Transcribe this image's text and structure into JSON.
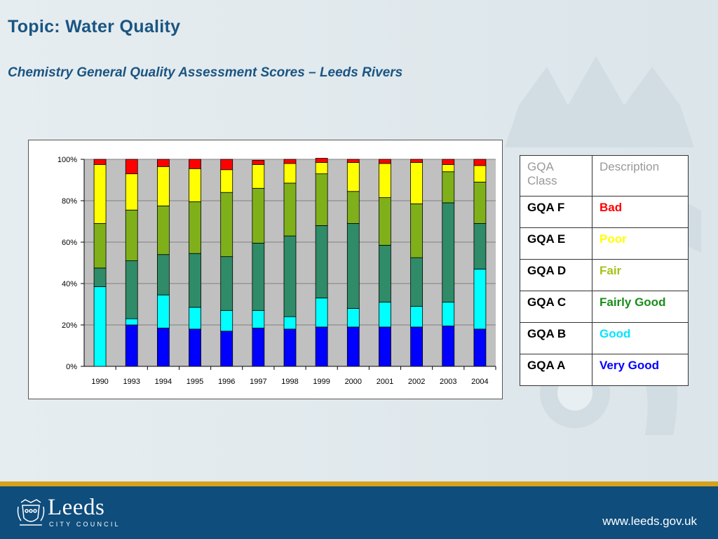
{
  "slide": {
    "title": "Topic: Water Quality",
    "subtitle": "Chemistry General Quality Assessment Scores – Leeds Rivers",
    "footer_url": "www.leeds.gov.uk",
    "logo_word": "Leeds",
    "logo_sub": "CITY COUNCIL"
  },
  "chart_data": {
    "type": "bar",
    "stacked": true,
    "percent": true,
    "categories": [
      "1990",
      "1993",
      "1994",
      "1995",
      "1996",
      "1997",
      "1998",
      "1999",
      "2000",
      "2001",
      "2002",
      "2003",
      "2004"
    ],
    "series": [
      {
        "name": "GQA A",
        "color": "#0000ff",
        "values": [
          0,
          20,
          18.5,
          18,
          17,
          18.5,
          18,
          19,
          19,
          19,
          19,
          19.5,
          18
        ]
      },
      {
        "name": "GQA B",
        "color": "#00ffff",
        "values": [
          38.5,
          3,
          16,
          10.5,
          10,
          8.5,
          6,
          14,
          9,
          12,
          10,
          11.5,
          29
        ]
      },
      {
        "name": "GQA C",
        "color": "#2f8b68",
        "values": [
          9,
          28,
          19.5,
          26,
          26,
          32.5,
          39,
          35,
          41,
          27.5,
          23.5,
          48,
          22
        ]
      },
      {
        "name": "GQA D",
        "color": "#7fb01a",
        "values": [
          21.5,
          24.5,
          23.5,
          25,
          31,
          26.5,
          25.5,
          25,
          15.5,
          23,
          26,
          15,
          20
        ]
      },
      {
        "name": "GQA E",
        "color": "#ffff00",
        "values": [
          28.5,
          17.5,
          19,
          16,
          11,
          11.5,
          9.5,
          5.5,
          14,
          16.5,
          20,
          3.5,
          8
        ]
      },
      {
        "name": "GQA F",
        "color": "#ff0000",
        "values": [
          2.5,
          7,
          3.5,
          4.5,
          5,
          2,
          2,
          2,
          1.5,
          2,
          1.5,
          2.5,
          3
        ]
      }
    ],
    "ylim": [
      0,
      100
    ],
    "yticks": [
      "0%",
      "20%",
      "40%",
      "60%",
      "80%",
      "100%"
    ],
    "grid": true,
    "plot_background": "#c0c0c0"
  },
  "legend_table": {
    "headers": [
      "GQA Class",
      "Description"
    ],
    "rows": [
      {
        "cls": "GQA F",
        "desc": "Bad",
        "color": "#ff0000"
      },
      {
        "cls": "GQA E",
        "desc": "Poor",
        "color": "#ffff00"
      },
      {
        "cls": "GQA D",
        "desc": "Fair",
        "color": "#a6c21a"
      },
      {
        "cls": "GQA C",
        "desc": "Fairly Good",
        "color": "#1a8c1a"
      },
      {
        "cls": "GQA B",
        "desc": "Good",
        "color": "#00e5ff"
      },
      {
        "cls": "GQA A",
        "desc": "Very Good",
        "color": "#0000ff"
      }
    ]
  }
}
